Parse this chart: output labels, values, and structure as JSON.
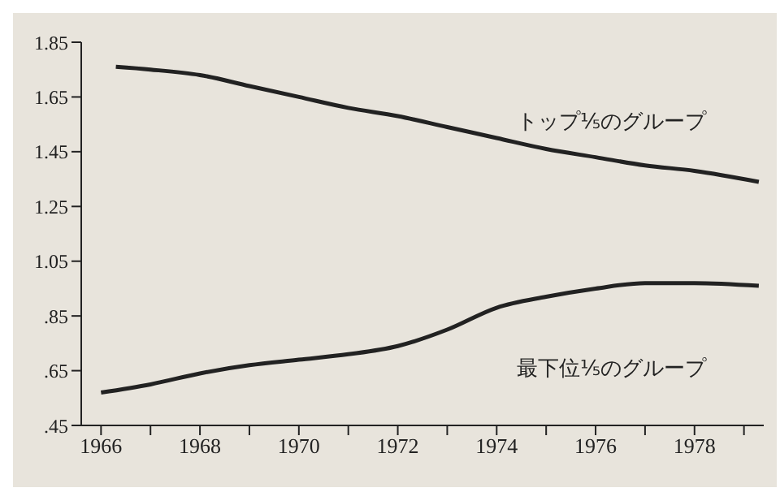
{
  "chart_data": {
    "type": "line",
    "marker": "none",
    "line_style": "solid",
    "grid": false,
    "legend": false,
    "xlim": [
      1965.6,
      1979.4
    ],
    "xticks": [
      1966,
      {
        "value": 1967,
        "label": null
      },
      1968,
      {
        "value": 1969,
        "label": null
      },
      1970,
      {
        "value": 1971,
        "label": null
      },
      1972,
      {
        "value": 1973,
        "label": null
      },
      1974,
      {
        "value": 1975,
        "label": null
      },
      1976,
      {
        "value": 1977,
        "label": null
      },
      1978,
      {
        "value": 1979,
        "label": null
      }
    ],
    "ylim": [
      0.45,
      1.85
    ],
    "yticks": [
      {
        "value": 0.45,
        "label": ".45"
      },
      {
        "value": 0.65,
        "label": ".65"
      },
      {
        "value": 0.85,
        "label": ".85"
      },
      1.05,
      1.25,
      1.45,
      1.65,
      1.85
    ],
    "series": [
      {
        "color": "#222222",
        "x": [
          1966.3,
          1967,
          1968,
          1969,
          1970,
          1971,
          1972,
          1973,
          1974,
          1975,
          1976,
          1977,
          1978,
          1979.3
        ],
        "values": [
          1.76,
          1.75,
          1.73,
          1.69,
          1.65,
          1.61,
          1.58,
          1.54,
          1.5,
          1.46,
          1.43,
          1.4,
          1.38,
          1.34
        ]
      },
      {
        "color": "#222222",
        "x": [
          1966,
          1967,
          1968,
          1969,
          1970,
          1971,
          1972,
          1973,
          1974,
          1975,
          1976,
          1977,
          1978,
          1979.3
        ],
        "values": [
          0.57,
          0.6,
          0.64,
          0.67,
          0.69,
          0.71,
          0.74,
          0.8,
          0.88,
          0.92,
          0.95,
          0.97,
          0.97,
          0.96
        ]
      }
    ],
    "annotations": [
      "トップ⅕のグループ",
      "最下位⅕のグループ"
    ]
  }
}
